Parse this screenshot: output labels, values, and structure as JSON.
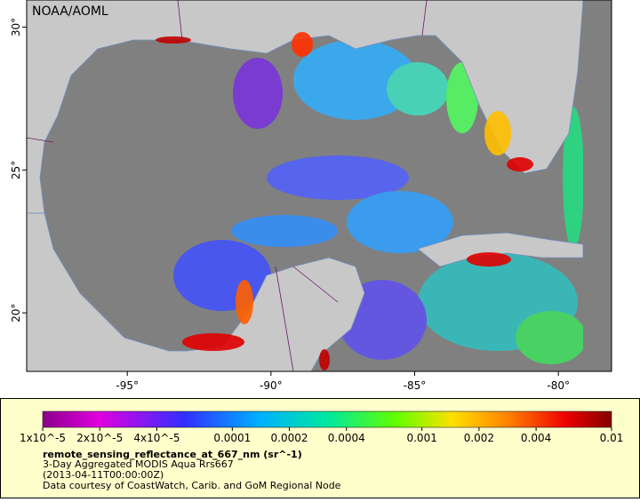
{
  "map": {
    "watermark": "NOAA/AOML",
    "lon_range": [
      -98.5,
      -78.15
    ],
    "lat_range": [
      17.95,
      30.95
    ],
    "lon_ticks": [
      {
        "value": -95,
        "label": "-95°"
      },
      {
        "value": -90,
        "label": "-90°"
      },
      {
        "value": -85,
        "label": "-85°"
      },
      {
        "value": -80,
        "label": "-80°"
      }
    ],
    "lat_ticks": [
      {
        "value": 30,
        "label": "30°"
      },
      {
        "value": 25,
        "label": "25°"
      },
      {
        "value": 20,
        "label": "20°"
      }
    ]
  },
  "colorbar": {
    "range": [
      1e-05,
      0.01
    ],
    "log_scale": true,
    "ticks": [
      {
        "value": 1e-05,
        "label": "1x10^-5"
      },
      {
        "value": 2e-05,
        "label": "2x10^-5"
      },
      {
        "value": 4e-05,
        "label": "4x10^-5"
      },
      0.0001,
      0.0002,
      0.0004,
      0.001,
      0.002,
      0.004,
      0.01
    ]
  },
  "caption": {
    "variable": "remote_sensing_reflectance_at_667_nm (sr^-1)",
    "lines": [
      "3-Day Aggregated MODIS Aqua Rrs667",
      "(2013-04-11T00:00:00Z)",
      "Data courtesy of CoastWatch, Carib. and GoM Regional Node"
    ]
  }
}
